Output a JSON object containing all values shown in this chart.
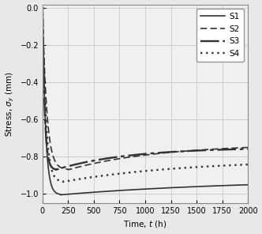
{
  "xlabel": "Time, $t$ (h)",
  "ylabel": "Stress, $\\sigma_y$ (mm)",
  "xlim": [
    0,
    2000
  ],
  "ylim": [
    -1.05,
    0.02
  ],
  "yticks": [
    0.0,
    -0.2,
    -0.4,
    -0.6,
    -0.8,
    -1.0
  ],
  "xticks": [
    0,
    250,
    500,
    750,
    1000,
    1250,
    1500,
    1750,
    2000
  ],
  "grid_color": "#c8c8c8",
  "line_color": "#333333",
  "bg_color": "#f0f0f0",
  "legend_loc": "upper right"
}
